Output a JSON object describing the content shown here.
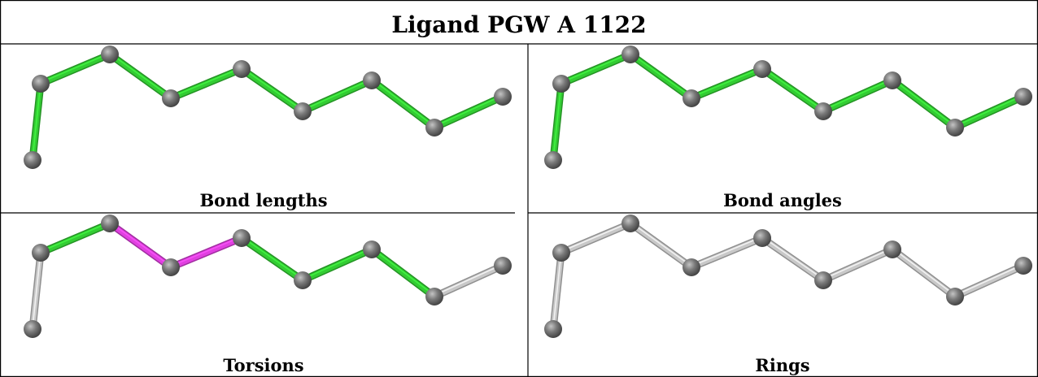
{
  "title": "Ligand PGW A 1122",
  "colors": {
    "good": "#33cc33",
    "outlier": "#e040e0",
    "unassessed": "#c8c8c8",
    "atom": "#6f6f6f",
    "border": "#000000"
  },
  "panels": [
    {
      "label": "Bond lengths",
      "bond_status": [
        "good",
        "good",
        "good",
        "good",
        "good",
        "good",
        "good",
        "good"
      ]
    },
    {
      "label": "Bond angles",
      "bond_status": [
        "good",
        "good",
        "good",
        "good",
        "good",
        "good",
        "good",
        "good"
      ]
    },
    {
      "label": "Torsions",
      "bond_status": [
        "unassessed",
        "good",
        "outlier",
        "outlier",
        "good",
        "good",
        "good",
        "unassessed"
      ]
    },
    {
      "label": "Rings",
      "bond_status": [
        "unassessed",
        "unassessed",
        "unassessed",
        "unassessed",
        "unassessed",
        "unassessed",
        "unassessed",
        "unassessed"
      ]
    }
  ]
}
